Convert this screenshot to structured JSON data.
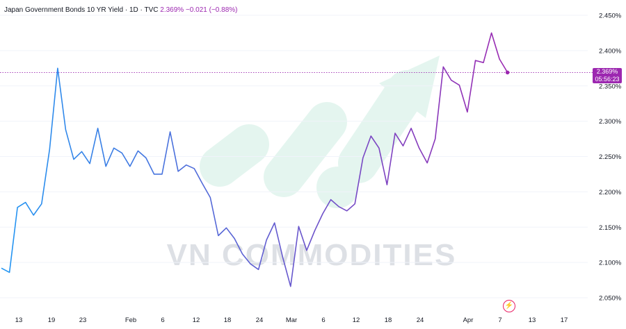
{
  "legend": {
    "symbol": "Japan Government Bonds 10 YR Yield",
    "interval": "1D",
    "source": "TVC",
    "sep": "·",
    "last": "2.369%",
    "change": "−0.021",
    "change_pct": "(−0.88%)"
  },
  "price_label": {
    "value": "2.369%",
    "countdown": "05:56:23"
  },
  "watermark": "VN COMMODITIES",
  "colors": {
    "line_start": "#2196f3",
    "line_end": "#9c27b0",
    "accent": "#9c27b0",
    "watermark": "#cfeee2",
    "bolt": "#e91e63"
  },
  "icons": {
    "watermark_logo": "growth-arrow-logo",
    "alert": "lightning-bolt-icon"
  },
  "chart_data": {
    "type": "line",
    "title": "Japan Government Bonds 10 YR Yield",
    "xlabel": "",
    "ylabel": "",
    "ylim": [
      2.03,
      2.465
    ],
    "y_ticks": [
      "2.450%",
      "2.400%",
      "2.350%",
      "2.300%",
      "2.250%",
      "2.200%",
      "2.150%",
      "2.100%",
      "2.050%"
    ],
    "y_tick_values": [
      2.45,
      2.4,
      2.35,
      2.3,
      2.25,
      2.2,
      2.15,
      2.1,
      2.05
    ],
    "x_ticks": [
      "13",
      "19",
      "23",
      "Feb",
      "6",
      "12",
      "18",
      "24",
      "Mar",
      "6",
      "12",
      "18",
      "24",
      "Apr",
      "7",
      "13",
      "17"
    ],
    "grid": true,
    "series": [
      {
        "values": [
          2.092,
          2.086,
          2.178,
          2.185,
          2.167,
          2.183,
          2.26,
          2.375,
          2.288,
          2.246,
          2.257,
          2.24,
          2.29,
          2.236,
          2.262,
          2.255,
          2.236,
          2.258,
          2.248,
          2.225,
          2.225,
          2.285,
          2.229,
          2.238,
          2.233,
          2.212,
          2.192,
          2.138,
          2.149,
          2.134,
          2.112,
          2.098,
          2.09,
          2.132,
          2.156,
          2.108,
          2.066,
          2.151,
          2.117,
          2.145,
          2.169,
          2.189,
          2.179,
          2.173,
          2.183,
          2.248,
          2.279,
          2.262,
          2.21,
          2.283,
          2.265,
          2.29,
          2.262,
          2.241,
          2.275,
          2.377,
          2.358,
          2.351,
          2.313,
          2.386,
          2.383,
          2.425,
          2.388,
          2.369
        ]
      }
    ],
    "last_value": 2.369
  }
}
